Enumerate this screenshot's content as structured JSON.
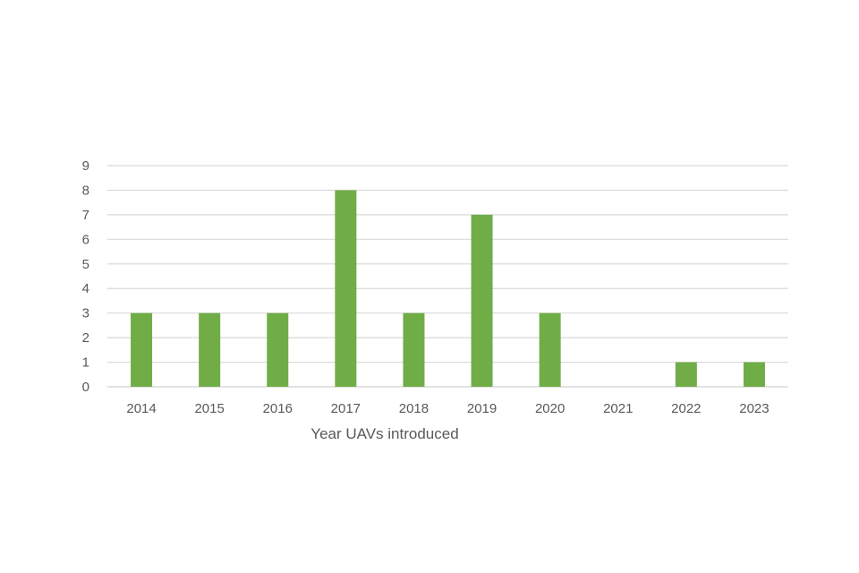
{
  "chart_data": {
    "type": "bar",
    "title": "",
    "xlabel": "Year UAVs introduced",
    "ylabel": "",
    "categories": [
      "2014",
      "2015",
      "2016",
      "2017",
      "2018",
      "2019",
      "2020",
      "2021",
      "2022",
      "2023"
    ],
    "values": [
      3,
      3,
      3,
      8,
      3,
      7,
      3,
      0,
      1,
      1
    ],
    "ylim": [
      0,
      9
    ],
    "yticks": [
      "0",
      "1",
      "2",
      "3",
      "4",
      "5",
      "6",
      "7",
      "8",
      "9"
    ],
    "grid": true,
    "legend": "none",
    "bar_color": "#70AD47",
    "grid_color": "#D9D9D9"
  }
}
